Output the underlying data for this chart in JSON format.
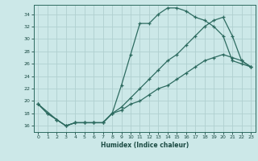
{
  "xlabel": "Humidex (Indice chaleur)",
  "bg_color": "#cce8e8",
  "grid_color": "#b0d0d0",
  "line_color": "#2d6b60",
  "xlim": [
    -0.5,
    23.5
  ],
  "ylim": [
    15.0,
    35.5
  ],
  "yticks": [
    16,
    18,
    20,
    22,
    24,
    26,
    28,
    30,
    32,
    34
  ],
  "xticks": [
    0,
    1,
    2,
    3,
    4,
    5,
    6,
    7,
    8,
    9,
    10,
    11,
    12,
    13,
    14,
    15,
    16,
    17,
    18,
    19,
    20,
    21,
    22,
    23
  ],
  "line1_x": [
    0,
    1,
    2,
    3,
    4,
    5,
    6,
    7,
    8,
    9,
    10,
    11,
    12,
    13,
    14,
    15,
    16,
    17,
    18,
    19,
    20,
    21,
    22,
    23
  ],
  "line1_y": [
    19.5,
    18.0,
    17.0,
    16.0,
    16.5,
    16.5,
    16.5,
    16.5,
    18.0,
    22.5,
    27.5,
    32.5,
    32.5,
    34.0,
    35.0,
    35.0,
    34.5,
    33.5,
    33.0,
    32.0,
    30.5,
    26.5,
    26.0,
    25.5
  ],
  "line2_x": [
    0,
    1,
    2,
    3,
    4,
    5,
    6,
    7,
    8,
    9,
    10,
    11,
    12,
    13,
    14,
    15,
    16,
    17,
    18,
    19,
    20,
    21,
    22,
    23
  ],
  "line2_y": [
    19.5,
    18.0,
    17.0,
    16.0,
    16.5,
    16.5,
    16.5,
    16.5,
    18.0,
    19.0,
    20.5,
    22.0,
    23.5,
    25.0,
    26.5,
    27.5,
    29.0,
    30.5,
    32.0,
    33.0,
    33.5,
    30.5,
    26.5,
    25.5
  ],
  "line3_x": [
    0,
    2,
    3,
    4,
    5,
    6,
    7,
    8,
    9,
    10,
    11,
    12,
    13,
    14,
    15,
    16,
    17,
    18,
    19,
    20,
    21,
    22,
    23
  ],
  "line3_y": [
    19.5,
    17.0,
    16.0,
    16.5,
    16.5,
    16.5,
    16.5,
    18.0,
    18.5,
    19.5,
    20.0,
    21.0,
    22.0,
    22.5,
    23.5,
    24.5,
    25.5,
    26.5,
    27.0,
    27.5,
    27.0,
    26.5,
    25.5
  ]
}
